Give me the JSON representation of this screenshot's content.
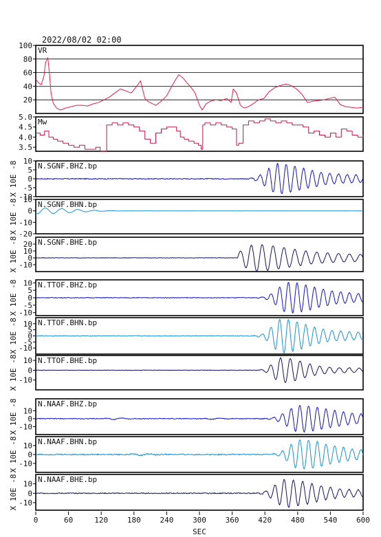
{
  "header": {
    "datetime": "2022/08/02 02:00"
  },
  "chart_data": {
    "type": "line",
    "xlabel": "SEC",
    "xlim": [
      0,
      600
    ],
    "xticks": [
      0,
      60,
      120,
      180,
      240,
      300,
      360,
      420,
      480,
      540,
      600
    ],
    "colors": {
      "vr": "#e0204a",
      "mw": "#c01848",
      "z": "#1010c8",
      "n": "#1890d8",
      "e": "#101060"
    },
    "vr": {
      "label": "VR",
      "ylim": [
        0,
        100
      ],
      "yticks": [
        20,
        40,
        60,
        80,
        100
      ],
      "grid": [
        20,
        40,
        60,
        80
      ],
      "x": [
        0,
        5,
        10,
        15,
        18,
        22,
        25,
        28,
        32,
        38,
        45,
        55,
        65,
        75,
        85,
        95,
        105,
        115,
        125,
        135,
        145,
        155,
        165,
        175,
        185,
        192,
        200,
        205,
        212,
        220,
        230,
        240,
        248,
        255,
        262,
        270,
        278,
        285,
        292,
        300,
        305,
        312,
        320,
        330,
        340,
        350,
        358,
        362,
        368,
        375,
        382,
        390,
        398,
        408,
        418,
        428,
        438,
        448,
        458,
        465,
        470,
        478,
        488,
        498,
        508,
        518,
        528,
        538,
        548,
        558,
        568,
        578,
        588,
        600
      ],
      "y": [
        50,
        45,
        42,
        55,
        75,
        82,
        60,
        30,
        15,
        8,
        5,
        8,
        10,
        12,
        12,
        11,
        14,
        16,
        20,
        24,
        30,
        36,
        33,
        30,
        40,
        48,
        22,
        18,
        15,
        12,
        18,
        26,
        38,
        48,
        57,
        52,
        44,
        38,
        30,
        12,
        5,
        14,
        18,
        20,
        19,
        22,
        16,
        36,
        30,
        12,
        8,
        10,
        14,
        20,
        22,
        32,
        38,
        41,
        43,
        42,
        40,
        36,
        28,
        16,
        18,
        19,
        20,
        22,
        24,
        13,
        10,
        9,
        8,
        9
      ]
    },
    "mw": {
      "label": "Mw",
      "ylim": [
        3.3,
        5.0
      ],
      "yticks": [
        3.5,
        4.0,
        4.5,
        5.0
      ],
      "x": [
        0,
        8,
        16,
        24,
        32,
        40,
        50,
        60,
        70,
        80,
        90,
        100,
        110,
        118,
        125,
        130,
        140,
        150,
        160,
        170,
        180,
        190,
        200,
        210,
        220,
        230,
        240,
        250,
        258,
        265,
        272,
        280,
        290,
        298,
        303,
        306,
        310,
        320,
        330,
        340,
        350,
        360,
        368,
        372,
        380,
        390,
        400,
        410,
        420,
        430,
        440,
        450,
        460,
        470,
        480,
        490,
        500,
        510,
        520,
        530,
        540,
        550,
        560,
        570,
        580,
        590,
        600
      ],
      "y": [
        4.2,
        4.1,
        4.3,
        4.0,
        3.9,
        3.8,
        3.7,
        3.6,
        3.5,
        3.6,
        3.4,
        3.4,
        3.5,
        3.3,
        3.3,
        4.6,
        4.7,
        4.6,
        4.7,
        4.6,
        4.5,
        4.3,
        3.9,
        3.7,
        4.2,
        4.4,
        4.5,
        4.5,
        4.3,
        4.0,
        3.9,
        3.8,
        3.7,
        3.6,
        3.4,
        4.6,
        4.7,
        4.6,
        4.7,
        4.6,
        4.5,
        4.4,
        3.6,
        3.7,
        4.6,
        4.8,
        4.7,
        4.8,
        4.9,
        4.8,
        4.7,
        4.8,
        4.7,
        4.6,
        4.6,
        4.5,
        4.2,
        4.3,
        4.1,
        4.0,
        4.2,
        4.0,
        4.4,
        4.3,
        4.1,
        4.0,
        4.1
      ]
    },
    "waveform_axis_label": "X 10E -8",
    "series": [
      {
        "name": "N.SGNF.BHZ.bp",
        "color_key": "z",
        "ylim": [
          -10,
          10
        ],
        "yticks": [
          -10,
          -5,
          0,
          5,
          10
        ],
        "onset": 375,
        "peak_t": 445,
        "amp": 8.5,
        "period": 16,
        "sigma": 45,
        "tail": 0.45,
        "noise": 0.25,
        "precursor": []
      },
      {
        "name": "N.SGNF.BHN.bp",
        "color_key": "n",
        "ylim": [
          -20,
          10
        ],
        "yticks": [
          -20,
          -10,
          0,
          10
        ],
        "onset": 600,
        "peak_t": 700,
        "amp": 0,
        "period": 16,
        "sigma": 40,
        "tail": 0.4,
        "noise": 0.05,
        "precursor": [
          [
            10,
            2.5,
            55
          ]
        ]
      },
      {
        "name": "N.SGNF.BHE.bp",
        "color_key": "e",
        "ylim": [
          -20,
          30
        ],
        "yticks": [
          -10,
          0,
          10,
          20
        ],
        "onset": 370,
        "peak_t": 405,
        "amp": 20,
        "period": 20,
        "sigma": 55,
        "tail": 0.55,
        "noise": 0.35,
        "precursor": []
      },
      {
        "name": "N.TTOF.BHZ.bp",
        "color_key": "z",
        "ylim": [
          -12,
          12
        ],
        "yticks": [
          -10,
          -5,
          0,
          5,
          10
        ],
        "onset": 395,
        "peak_t": 465,
        "amp": 10.5,
        "period": 16,
        "sigma": 45,
        "tail": 0.45,
        "noise": 0.25,
        "precursor": []
      },
      {
        "name": "N.TTOF.BHN.bp",
        "color_key": "n",
        "ylim": [
          -15,
          15
        ],
        "yticks": [
          -10,
          -5,
          0,
          5,
          10
        ],
        "onset": 395,
        "peak_t": 452,
        "amp": 14,
        "period": 16,
        "sigma": 40,
        "tail": 0.4,
        "noise": 0.3,
        "precursor": []
      },
      {
        "name": "N.TTOF.BHE.bp",
        "color_key": "e",
        "ylim": [
          -20,
          15
        ],
        "yticks": [
          -10,
          0,
          10
        ],
        "onset": 390,
        "peak_t": 452,
        "amp": 13,
        "period": 18,
        "sigma": 35,
        "tail": 0.3,
        "noise": 0.25,
        "precursor": []
      },
      {
        "name": "N.NAAF.BHZ.bp",
        "color_key": "z",
        "ylim": [
          -20,
          25
        ],
        "yticks": [
          -10,
          0,
          10
        ],
        "onset": 400,
        "peak_t": 485,
        "amp": 17,
        "period": 16,
        "sigma": 50,
        "tail": 0.5,
        "noise": 0.5,
        "precursor": [
          [
            150,
            1.2,
            15
          ],
          [
            330,
            0.8,
            15
          ]
        ]
      },
      {
        "name": "N.NAAF.BHN.bp",
        "color_key": "n",
        "ylim": [
          -20,
          20
        ],
        "yticks": [
          -10,
          0,
          10
        ],
        "onset": 400,
        "peak_t": 487,
        "amp": 17,
        "period": 16,
        "sigma": 45,
        "tail": 0.45,
        "noise": 0.7,
        "precursor": [
          [
            200,
            1.0,
            20
          ]
        ]
      },
      {
        "name": "N.NAAF.BHE.bp",
        "color_key": "e",
        "ylim": [
          -18,
          20
        ],
        "yticks": [
          -10,
          0,
          10
        ],
        "onset": 400,
        "peak_t": 460,
        "amp": 15,
        "period": 17,
        "sigma": 45,
        "tail": 0.4,
        "noise": 0.5,
        "precursor": []
      }
    ]
  }
}
